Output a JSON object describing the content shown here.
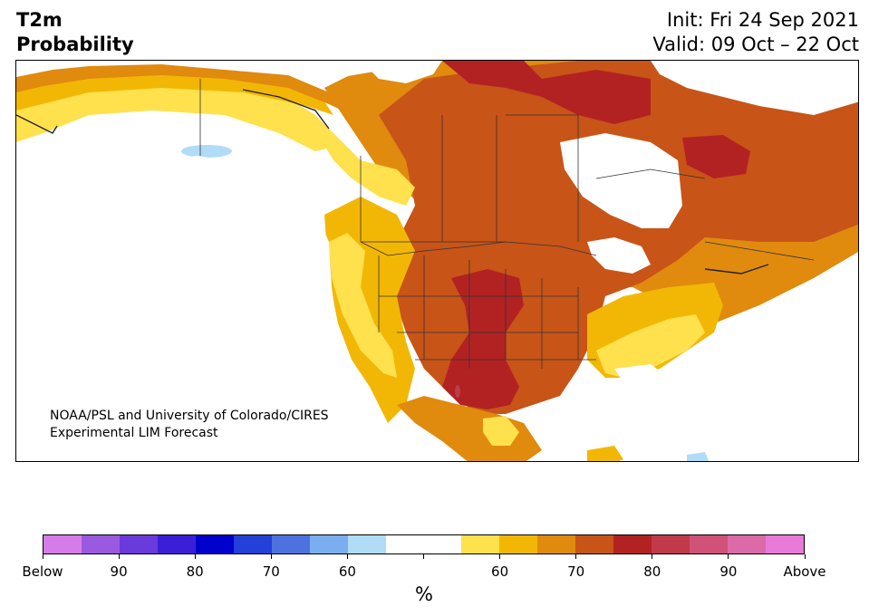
{
  "header": {
    "title_line1": "T2m",
    "title_line2": "Probability",
    "init": "Init: Fri 24 Sep 2021",
    "valid": "Valid: 09 Oct – 22 Oct"
  },
  "credit": {
    "line1": "NOAA/PSL and University of Colorado/CIRES",
    "line2": "Experimental LIM Forecast"
  },
  "colorbar": {
    "colors": [
      "#d67ce9",
      "#9b59e0",
      "#6a3bdc",
      "#3b1fd8",
      "#0000cc",
      "#2340d8",
      "#4d72e0",
      "#7aaef0",
      "#b0dcf8",
      "#ffffff",
      "#ffffff",
      "#ffe14d",
      "#f2b705",
      "#e08a0e",
      "#c85418",
      "#b22222",
      "#c03a4a",
      "#d05278",
      "#dc6aa8",
      "#e87ad8"
    ],
    "labels": [
      "Below",
      "90",
      "80",
      "70",
      "60",
      "",
      "60",
      "70",
      "80",
      "90",
      "Above"
    ],
    "unit": "%"
  },
  "map": {
    "legend_colors": {
      "yellow": "#ffe14d",
      "gold": "#f2b705",
      "orange": "#e08a0e",
      "dark_orange": "#c85418",
      "red": "#b22222",
      "magenta": "#c03a4a",
      "light_blue": "#b0dcf8"
    }
  }
}
